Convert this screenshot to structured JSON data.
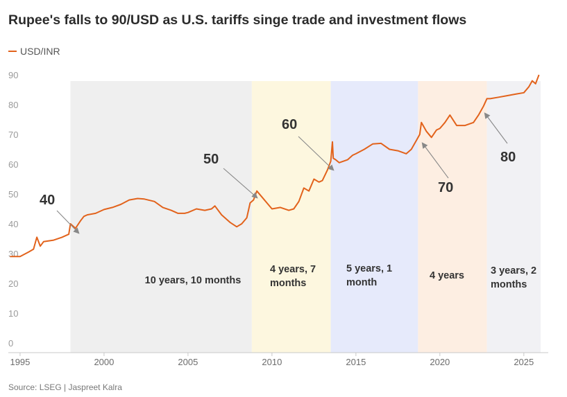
{
  "header": {
    "title": "Rupee's falls to 90/USD as U.S. tariffs singe trade and investment flows",
    "legend_label": "USD/INR",
    "source": "Source: LSEG | Jaspreet Kalra"
  },
  "chart_data": {
    "type": "line",
    "title": "Rupee's falls to 90/USD as U.S. tariffs singe trade and investment flows",
    "xlabel": "",
    "ylabel": "",
    "xlim": [
      1994.3,
      2026.0
    ],
    "ylim": [
      0,
      90
    ],
    "y_ticks": [
      "0",
      "10",
      "20",
      "30",
      "40",
      "50",
      "60",
      "70",
      "80",
      "90"
    ],
    "x_ticks": [
      "1995",
      "2000",
      "2005",
      "2010",
      "2015",
      "2020",
      "2025"
    ],
    "color": "#e2621b",
    "series": [
      {
        "name": "USD/INR",
        "x": [
          1994.4,
          1995.0,
          1995.5,
          1995.8,
          1996.0,
          1996.2,
          1996.4,
          1997.0,
          1997.5,
          1997.9,
          1998.0,
          1998.3,
          1998.6,
          1998.8,
          1999.0,
          1999.5,
          2000.0,
          2000.5,
          2001.0,
          2001.5,
          2002.0,
          2002.4,
          2003.0,
          2003.5,
          2004.0,
          2004.4,
          2004.8,
          2005.0,
          2005.5,
          2006.0,
          2006.4,
          2006.6,
          2007.0,
          2007.5,
          2007.9,
          2008.2,
          2008.5,
          2008.7,
          2008.9,
          2009.1,
          2009.4,
          2009.7,
          2010.0,
          2010.5,
          2011.0,
          2011.3,
          2011.6,
          2011.9,
          2012.2,
          2012.5,
          2012.8,
          2013.0,
          2013.3,
          2013.5,
          2013.6,
          2013.65,
          2013.8,
          2014.0,
          2014.5,
          2014.8,
          2015.0,
          2015.5,
          2016.0,
          2016.5,
          2017.0,
          2017.5,
          2018.0,
          2018.3,
          2018.6,
          2018.8,
          2018.9,
          2019.2,
          2019.5,
          2019.8,
          2020.0,
          2020.3,
          2020.6,
          2021.0,
          2021.5,
          2022.0,
          2022.3,
          2022.6,
          2022.8,
          2023.0,
          2023.5,
          2024.0,
          2024.5,
          2025.0,
          2025.3,
          2025.5,
          2025.7,
          2025.9
        ],
        "values": [
          29,
          29,
          30.5,
          31.5,
          35.5,
          32.5,
          34,
          34.5,
          35.5,
          36.5,
          40,
          38.5,
          41,
          42.5,
          43,
          43.5,
          44.8,
          45.5,
          46.5,
          48,
          48.5,
          48.3,
          47.5,
          45.5,
          44.5,
          43.5,
          43.5,
          43.8,
          45,
          44.5,
          45,
          46,
          43,
          40.5,
          39,
          40,
          42,
          47,
          48,
          51,
          49,
          47,
          45,
          45.5,
          44.5,
          45,
          47.5,
          52,
          51,
          55,
          54,
          54.5,
          58,
          61,
          67.5,
          62,
          61.5,
          60.5,
          61.5,
          63,
          63.5,
          65,
          66.8,
          67,
          65,
          64.5,
          63.5,
          65,
          68,
          70,
          74,
          71,
          69,
          71.5,
          72,
          74,
          76.5,
          73,
          73,
          74,
          76.5,
          79.5,
          82,
          82,
          82.5,
          83,
          83.5,
          84,
          86,
          88,
          87,
          90
        ]
      }
    ],
    "periods": [
      {
        "label_line1": "10 years, 10 months",
        "label_line2": "",
        "start": 1998.0,
        "end": 2008.8,
        "color": "#efefef"
      },
      {
        "label_line1": "4 years, 7",
        "label_line2": "months",
        "start": 2008.8,
        "end": 2013.5,
        "color": "#fdf7df"
      },
      {
        "label_line1": "5 years, 1",
        "label_line2": "month",
        "start": 2013.5,
        "end": 2018.7,
        "color": "#e6eafb"
      },
      {
        "label_line1": "4 years",
        "label_line2": "",
        "start": 2018.7,
        "end": 2022.8,
        "color": "#fdeee2"
      },
      {
        "label_line1": "3 years, 2",
        "label_line2": "months",
        "start": 2022.8,
        "end": 2026.0,
        "color": "#f1f1f4"
      }
    ],
    "milestones": [
      {
        "label": "40",
        "x": 1998.0,
        "y": 40
      },
      {
        "label": "50",
        "x": 2008.8,
        "y": 50
      },
      {
        "label": "60",
        "x": 2013.5,
        "y": 60
      },
      {
        "label": "70",
        "x": 2018.7,
        "y": 70
      },
      {
        "label": "80",
        "x": 2022.8,
        "y": 80
      }
    ]
  }
}
